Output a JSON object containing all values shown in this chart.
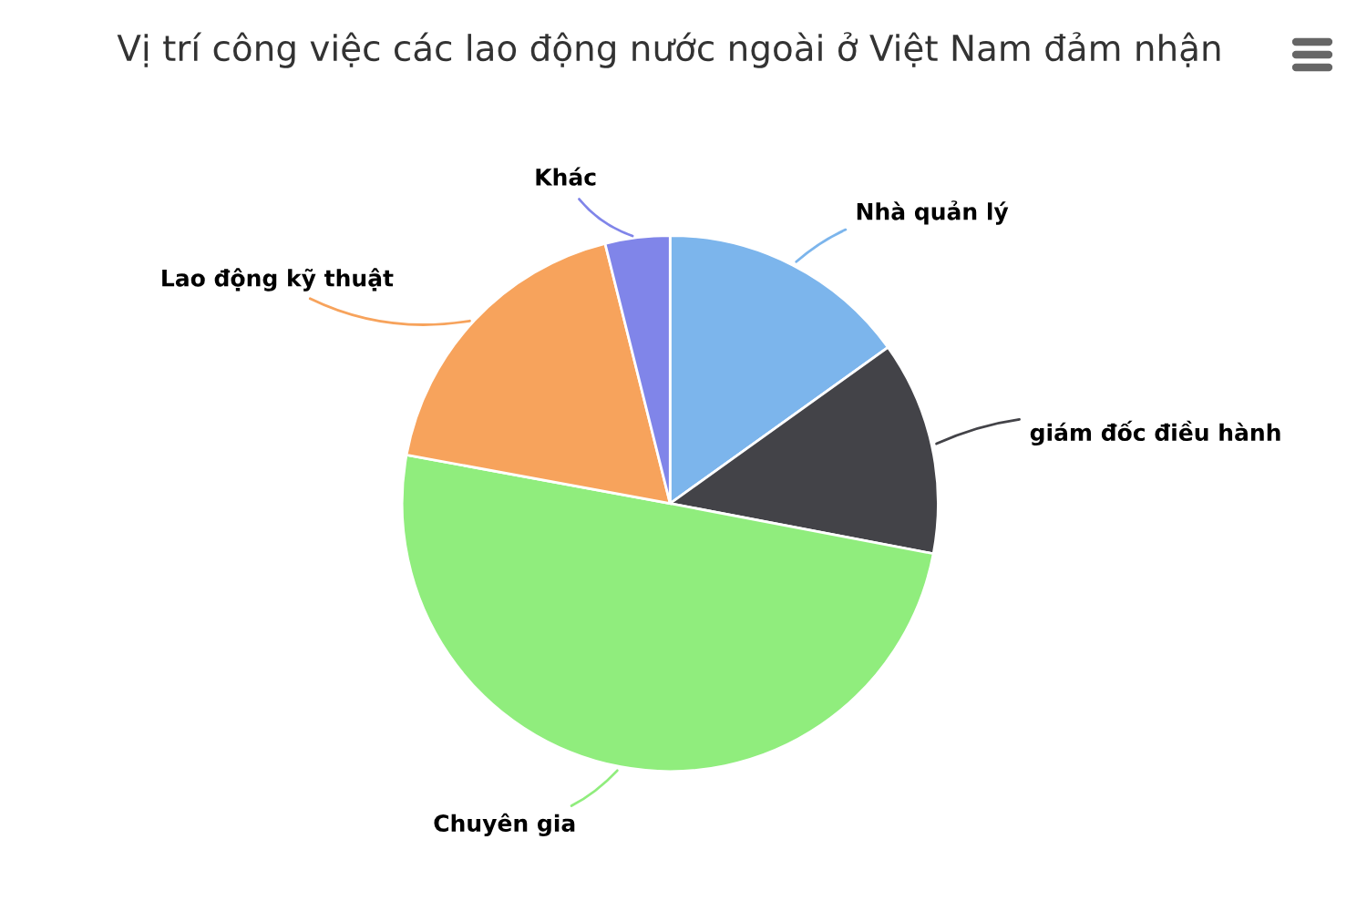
{
  "chart_data": {
    "type": "pie",
    "title": "Vị trí công việc các lao động nước ngoài ở Việt Nam đảm nhận",
    "categories": [
      "Nhà quản lý",
      "giám đốc điều hành",
      "Chuyên gia",
      "Lao động kỹ thuật",
      "Khác"
    ],
    "values": [
      15.1,
      12.9,
      49.9,
      18.2,
      3.9
    ],
    "colors": [
      "#7cb5ec",
      "#434348",
      "#90ed7d",
      "#f7a35c",
      "#8085e9"
    ],
    "legend": false
  }
}
